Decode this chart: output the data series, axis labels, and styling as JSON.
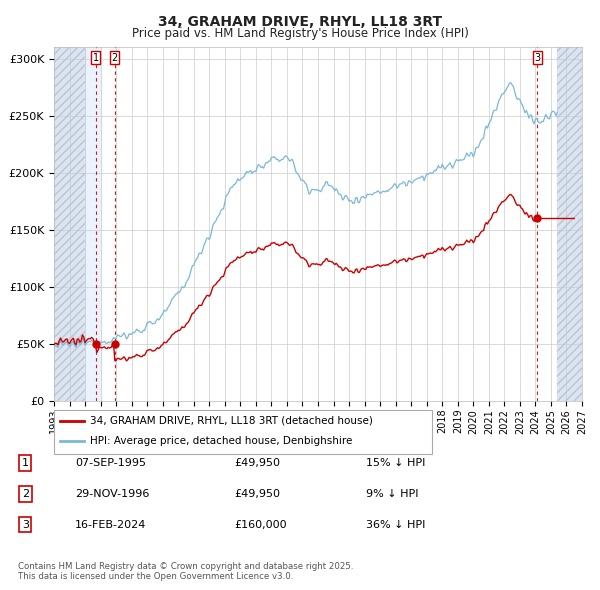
{
  "title_line1": "34, GRAHAM DRIVE, RHYL, LL18 3RT",
  "title_line2": "Price paid vs. HM Land Registry's House Price Index (HPI)",
  "ylim": [
    0,
    310000
  ],
  "xlim_start": 1993.0,
  "xlim_end": 2027.0,
  "yticks": [
    0,
    50000,
    100000,
    150000,
    200000,
    250000,
    300000
  ],
  "ytick_labels": [
    "£0",
    "£50K",
    "£100K",
    "£150K",
    "£200K",
    "£250K",
    "£300K"
  ],
  "xticks": [
    1993,
    1994,
    1995,
    1996,
    1997,
    1998,
    1999,
    2000,
    2001,
    2002,
    2003,
    2004,
    2005,
    2006,
    2007,
    2008,
    2009,
    2010,
    2011,
    2012,
    2013,
    2014,
    2015,
    2016,
    2017,
    2018,
    2019,
    2020,
    2021,
    2022,
    2023,
    2024,
    2025,
    2026,
    2027
  ],
  "hpi_color": "#7ab8d9",
  "price_color": "#cc0000",
  "dot_color": "#cc0000",
  "vline_color": "#cc0000",
  "hatch_fill_color": "#dce4ef",
  "hatch_edge_color": "#b8c4d8",
  "legend_entries": [
    "34, GRAHAM DRIVE, RHYL, LL18 3RT (detached house)",
    "HPI: Average price, detached house, Denbighshire"
  ],
  "transactions": [
    {
      "num": 1,
      "date": "07-SEP-1995",
      "price": 49950,
      "pct": "15% ↓ HPI",
      "year": 1995.69
    },
    {
      "num": 2,
      "date": "29-NOV-1996",
      "price": 49950,
      "pct": "9% ↓ HPI",
      "year": 1996.91
    },
    {
      "num": 3,
      "date": "16-FEB-2024",
      "price": 160000,
      "pct": "36% ↓ HPI",
      "year": 2024.12
    }
  ],
  "footnote": "Contains HM Land Registry data © Crown copyright and database right 2025.\nThis data is licensed under the Open Government Licence v3.0.",
  "bg_color": "#ffffff",
  "plot_bg_color": "#ffffff",
  "grid_color": "#cccccc",
  "hatch_left_end": 1995.0,
  "hatch_right_start": 2025.42
}
